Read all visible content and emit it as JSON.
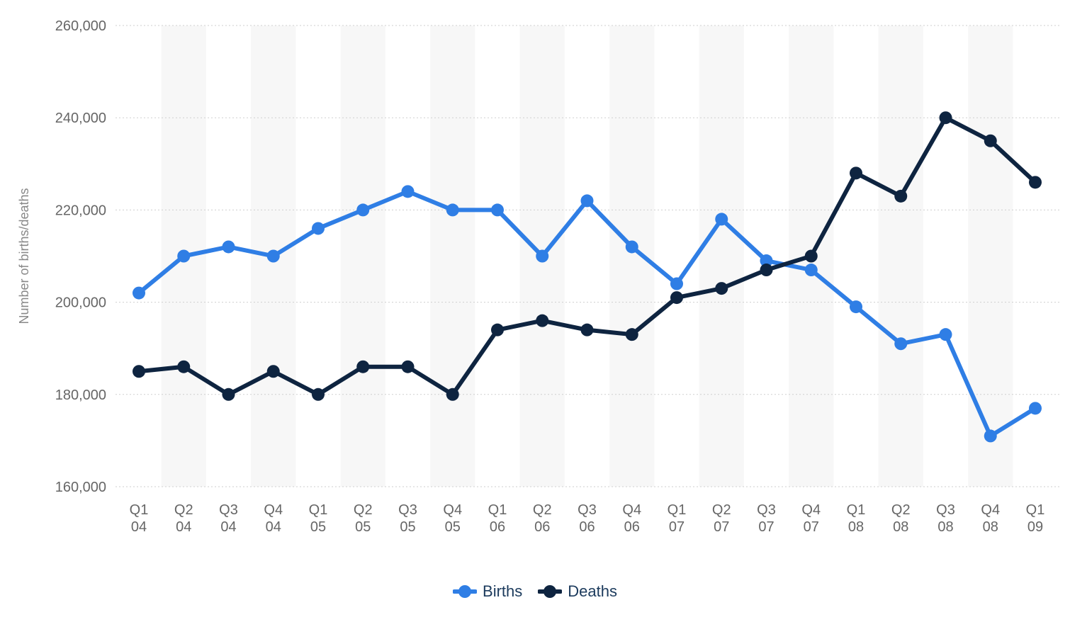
{
  "chart_data": {
    "type": "line",
    "categories": [
      [
        "Q1",
        "04"
      ],
      [
        "Q2",
        "04"
      ],
      [
        "Q3",
        "04"
      ],
      [
        "Q4",
        "04"
      ],
      [
        "Q1",
        "05"
      ],
      [
        "Q2",
        "05"
      ],
      [
        "Q3",
        "05"
      ],
      [
        "Q4",
        "05"
      ],
      [
        "Q1",
        "06"
      ],
      [
        "Q2",
        "06"
      ],
      [
        "Q3",
        "06"
      ],
      [
        "Q4",
        "06"
      ],
      [
        "Q1",
        "07"
      ],
      [
        "Q2",
        "07"
      ],
      [
        "Q3",
        "07"
      ],
      [
        "Q4",
        "07"
      ],
      [
        "Q1",
        "08"
      ],
      [
        "Q2",
        "08"
      ],
      [
        "Q3",
        "08"
      ],
      [
        "Q4",
        "08"
      ],
      [
        "Q1",
        "09"
      ]
    ],
    "series": [
      {
        "name": "Births",
        "color": "#2f7ee5",
        "values": [
          202000,
          210000,
          212000,
          210000,
          216000,
          220000,
          224000,
          220000,
          220000,
          210000,
          222000,
          212000,
          204000,
          218000,
          209000,
          207000,
          199000,
          191000,
          193000,
          171000,
          177000
        ]
      },
      {
        "name": "Deaths",
        "color": "#0e2440",
        "values": [
          185000,
          186000,
          180000,
          185000,
          180000,
          186000,
          186000,
          180000,
          194000,
          196000,
          194000,
          193000,
          201000,
          203000,
          207000,
          210000,
          228000,
          223000,
          240000,
          235000,
          226000
        ]
      }
    ],
    "ylabel": "Number of births/deaths",
    "ylim": [
      160000,
      260000
    ],
    "yticks": [
      160000,
      180000,
      200000,
      220000,
      240000,
      260000
    ],
    "ytick_labels": [
      "160,000",
      "180,000",
      "200,000",
      "220,000",
      "240,000",
      "260,000"
    ],
    "grid": true,
    "legend_position": "bottom-center"
  }
}
